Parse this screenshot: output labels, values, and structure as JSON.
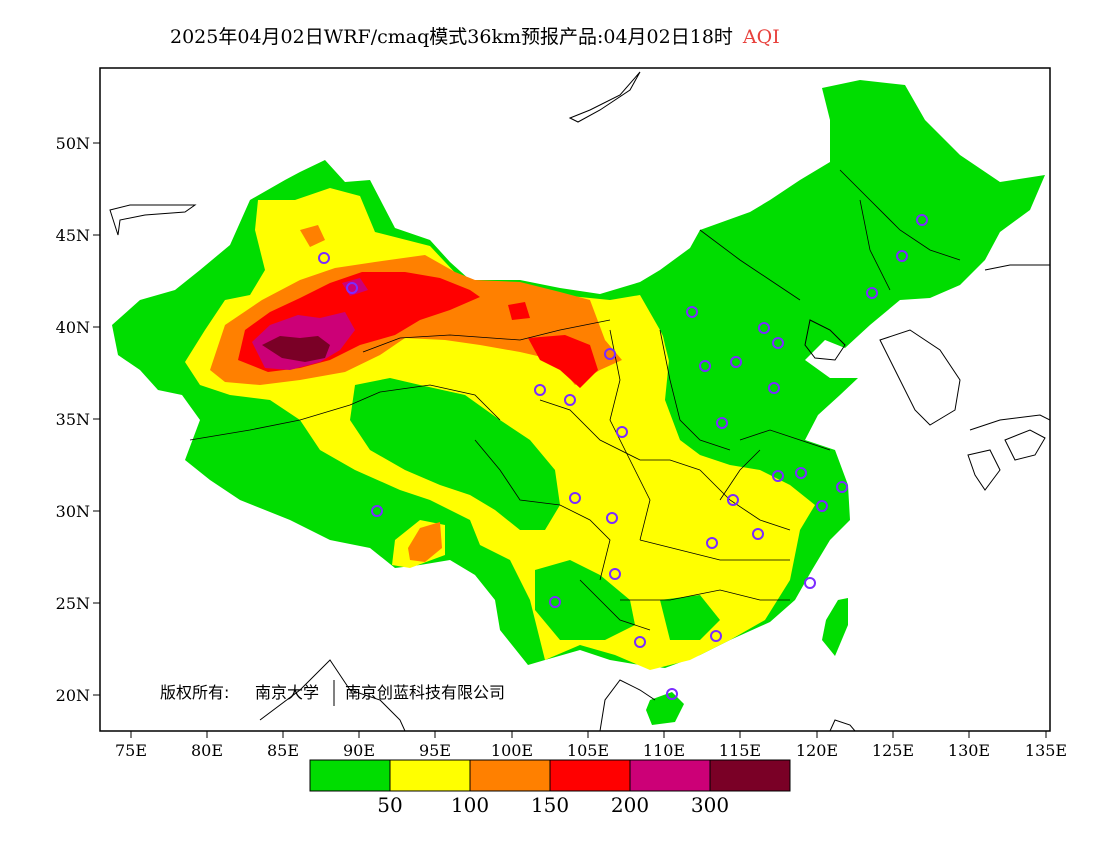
{
  "title": {
    "text": "2025年04月02日WRF/cmaq模式36km预报产品:04月02日18时",
    "variable": "AQI",
    "variable_color": "#e8413c"
  },
  "axes": {
    "lon_labels": [
      "75E",
      "80E",
      "85E",
      "90E",
      "95E",
      "100E",
      "105E",
      "110E",
      "115E",
      "120E",
      "125E",
      "130E",
      "135E"
    ],
    "lat_labels": [
      "50N",
      "45N",
      "40N",
      "35N",
      "30N",
      "25N",
      "20N"
    ]
  },
  "copyright": {
    "prefix": "版权所有:",
    "org1": "南京大学",
    "org2": "南京创蓝科技有限公司"
  },
  "colorbar": {
    "colors": [
      "#00dd00",
      "#ffff00",
      "#ff8000",
      "#ff0000",
      "#cc0077",
      "#7a0026"
    ],
    "labels": [
      "50",
      "100",
      "150",
      "200",
      "300"
    ]
  },
  "map_legend": {
    "aqi_50_color": "#00dd00",
    "aqi_100_color": "#ffff00",
    "aqi_150_color": "#ff8000",
    "aqi_200_color": "#ff0000",
    "aqi_300_color": "#cc0077",
    "aqi_max_color": "#7a0026",
    "station_marker_color": "#7b2cff"
  }
}
